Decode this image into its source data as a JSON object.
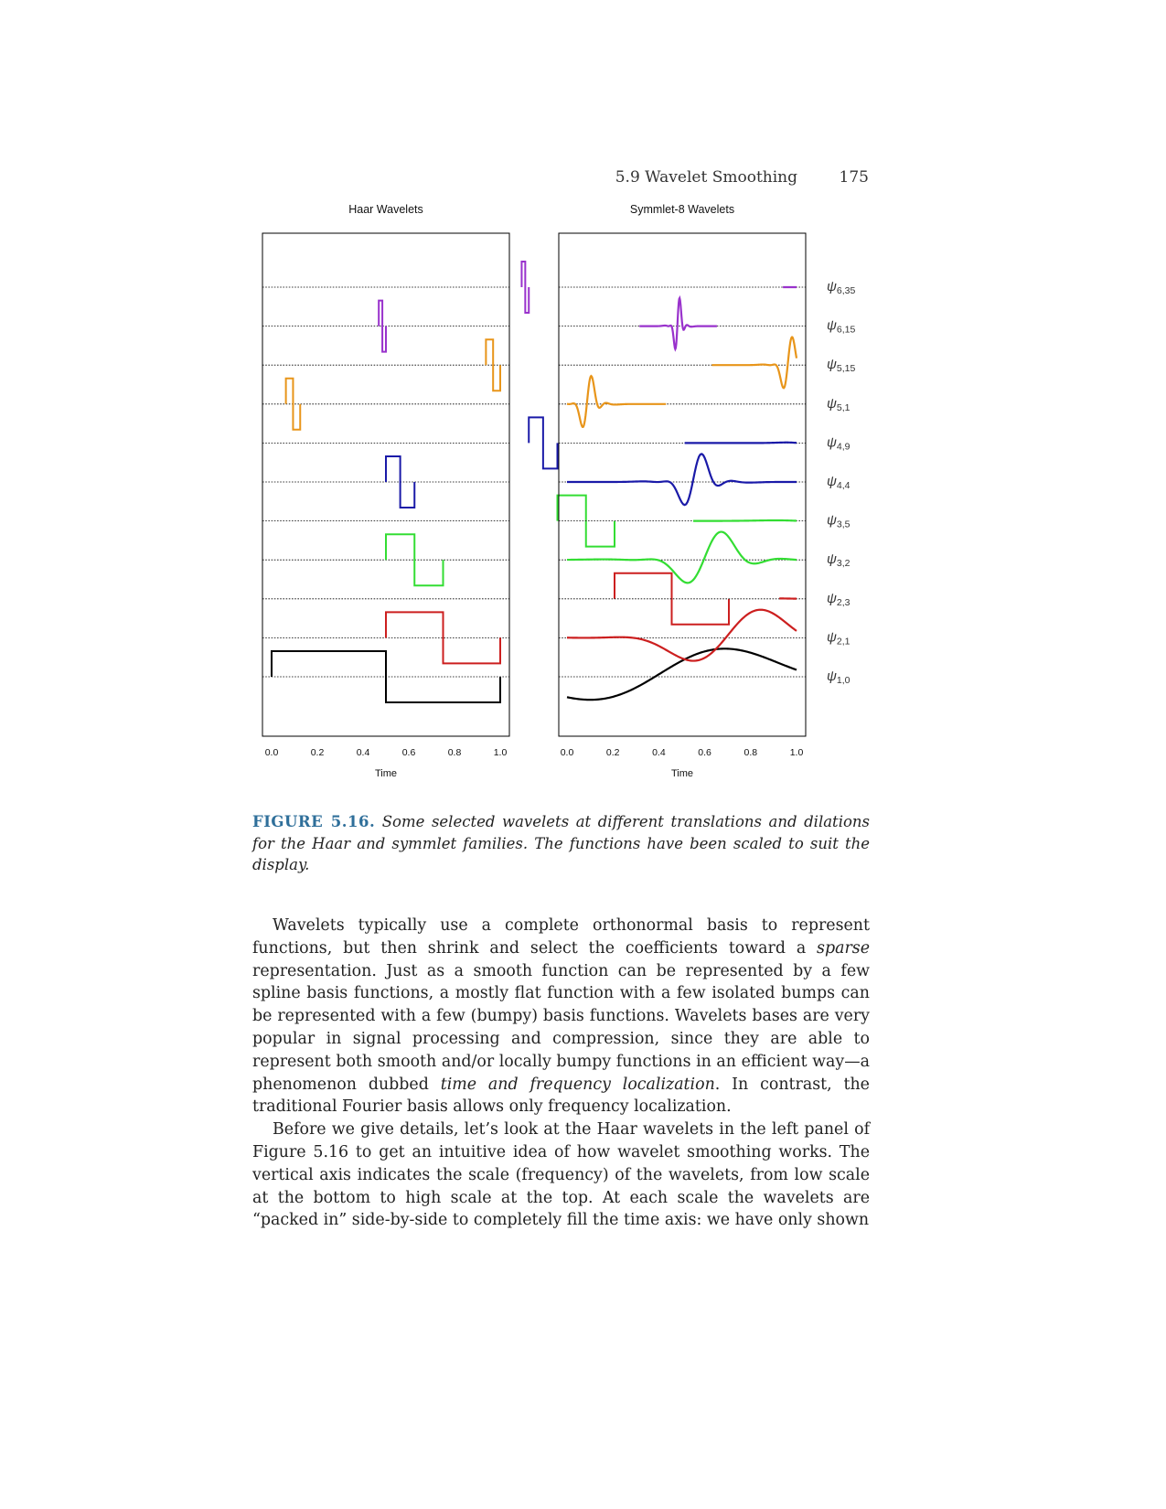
{
  "header": {
    "section": "5.9 Wavelet Smoothing",
    "page_number": "175"
  },
  "chart_data": [
    {
      "type": "line",
      "title": "Haar Wavelets",
      "xlabel": "Time",
      "x_ticks": [
        "0.0",
        "0.2",
        "0.4",
        "0.6",
        "0.8",
        "1.0"
      ],
      "xlim": [
        0,
        1
      ],
      "series": [
        {
          "name": "ψ1,0",
          "color": "#000000",
          "scale": 1,
          "translation": 0
        },
        {
          "name": "ψ2,1",
          "color": "#cc1f1f",
          "scale": 2,
          "translation": 1
        },
        {
          "name": "ψ2,3",
          "color": "#cc1f1f",
          "scale": 2,
          "translation": 3
        },
        {
          "name": "ψ3,2",
          "color": "#33dd33",
          "scale": 3,
          "translation": 2
        },
        {
          "name": "ψ3,5",
          "color": "#33dd33",
          "scale": 3,
          "translation": 5
        },
        {
          "name": "ψ4,4",
          "color": "#1a1aa8",
          "scale": 4,
          "translation": 4
        },
        {
          "name": "ψ4,9",
          "color": "#1a1aa8",
          "scale": 4,
          "translation": 9
        },
        {
          "name": "ψ5,1",
          "color": "#e8951a",
          "scale": 5,
          "translation": 1
        },
        {
          "name": "ψ5,15",
          "color": "#e8951a",
          "scale": 5,
          "translation": 15
        },
        {
          "name": "ψ6,15",
          "color": "#9932cc",
          "scale": 6,
          "translation": 15
        },
        {
          "name": "ψ6,35",
          "color": "#9932cc",
          "scale": 6,
          "translation": 35
        }
      ]
    },
    {
      "type": "line",
      "title": "Symmlet-8 Wavelets",
      "xlabel": "Time",
      "x_ticks": [
        "0.0",
        "0.2",
        "0.4",
        "0.6",
        "0.8",
        "1.0"
      ],
      "xlim": [
        0,
        1
      ],
      "series": [
        {
          "name": "ψ1,0",
          "color": "#000000",
          "scale": 1,
          "translation": 0
        },
        {
          "name": "ψ2,1",
          "color": "#cc1f1f",
          "scale": 2,
          "translation": 1
        },
        {
          "name": "ψ2,3",
          "color": "#cc1f1f",
          "scale": 2,
          "translation": 3
        },
        {
          "name": "ψ3,2",
          "color": "#33dd33",
          "scale": 3,
          "translation": 2
        },
        {
          "name": "ψ3,5",
          "color": "#33dd33",
          "scale": 3,
          "translation": 5
        },
        {
          "name": "ψ4,4",
          "color": "#1a1aa8",
          "scale": 4,
          "translation": 4
        },
        {
          "name": "ψ4,9",
          "color": "#1a1aa8",
          "scale": 4,
          "translation": 9
        },
        {
          "name": "ψ5,1",
          "color": "#e8951a",
          "scale": 5,
          "translation": 1
        },
        {
          "name": "ψ5,15",
          "color": "#e8951a",
          "scale": 5,
          "translation": 15
        },
        {
          "name": "ψ6,15",
          "color": "#9932cc",
          "scale": 6,
          "translation": 15
        },
        {
          "name": "ψ6,35",
          "color": "#9932cc",
          "scale": 6,
          "translation": 35
        }
      ]
    }
  ],
  "caption": {
    "label": "FIGURE 5.16.",
    "text": "Some selected wavelets at different translations and dilations for the Haar and symmlet families. The functions have been scaled to suit the display."
  },
  "body": {
    "p1_a": "Wavelets typically use a complete orthonormal basis to represent functions, but then shrink and select the coefficients toward a ",
    "p1_em1": "sparse",
    "p1_b": " representation. Just as a smooth function can be represented by a few spline basis functions, a mostly flat function with a few isolated bumps can be represented with a few (bumpy) basis functions. Wavelets bases are very popular in signal processing and compression, since they are able to represent both smooth and/or locally bumpy functions in an efficient way—a phenomenon dubbed ",
    "p1_em2": "time and frequency localization",
    "p1_c": ". In contrast, the traditional Fourier basis allows only frequency localization.",
    "p2": "Before we give details, let’s look at the Haar wavelets in the left panel of Figure 5.16 to get an intuitive idea of how wavelet smoothing works. The vertical axis indicates the scale (frequency) of the wavelets, from low scale at the bottom to high scale at the top. At each scale the wavelets are “packed in” side-by-side to completely fill the time axis: we have only shown"
  }
}
